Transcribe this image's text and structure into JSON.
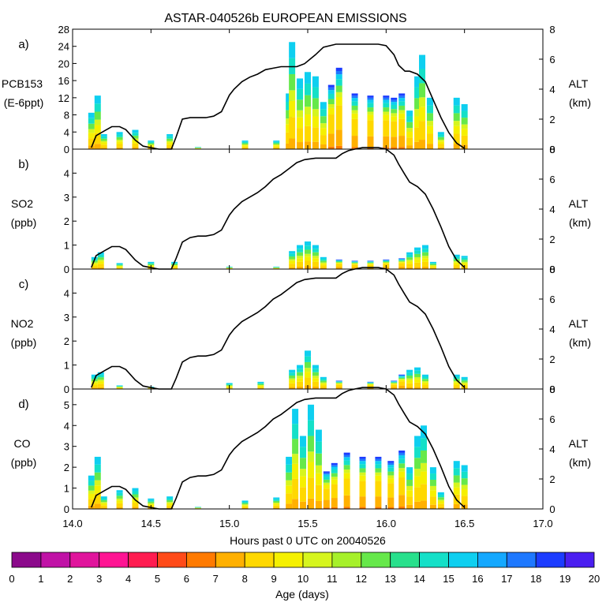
{
  "chart_data": {
    "type": "stacked-bar-with-line",
    "title": "ASTAR-040526b EUROPEAN EMISSIONS",
    "xlabel": "Hours past 0 UTC on 20040526",
    "xlim": [
      14.0,
      17.0
    ],
    "xticks": [
      "14.0",
      "14.5",
      "15.0",
      "15.5",
      "16.0",
      "16.5",
      "17.0"
    ],
    "altitude_axis": {
      "label": "ALT",
      "unit": "(km)",
      "ylim": [
        0,
        8
      ],
      "ticks": [
        "0",
        "2",
        "4",
        "6",
        "8"
      ]
    },
    "colorbar": {
      "label": "Age (days)",
      "ticks": [
        "0",
        "1",
        "2",
        "3",
        "4",
        "5",
        "6",
        "7",
        "8",
        "9",
        "10",
        "11",
        "12",
        "13",
        "14",
        "15",
        "16",
        "17",
        "18",
        "19",
        "20"
      ],
      "colors": [
        "#8b0a8b",
        "#c012a6",
        "#e0149c",
        "#ff1493",
        "#ff1c50",
        "#ff4a18",
        "#ff7a00",
        "#ffb000",
        "#ffd800",
        "#f5f000",
        "#d6f51e",
        "#a6f02a",
        "#66e84a",
        "#28e08c",
        "#14e0c8",
        "#0ecff0",
        "#14a8ff",
        "#1e78ff",
        "#1c3cff",
        "#4a1ef0"
      ]
    },
    "altitude_profile": {
      "x": [
        14.12,
        14.15,
        14.2,
        14.25,
        14.3,
        14.34,
        14.4,
        14.45,
        14.5,
        14.55,
        14.6,
        14.63,
        14.66,
        14.7,
        14.75,
        14.8,
        14.85,
        14.9,
        14.95,
        15.0,
        15.03,
        15.08,
        15.13,
        15.18,
        15.23,
        15.28,
        15.33,
        15.38,
        15.43,
        15.48,
        15.55,
        15.6,
        15.68,
        15.72,
        15.76,
        15.8,
        15.85,
        15.9,
        15.95,
        16.0,
        16.05,
        16.08,
        16.12,
        16.15,
        16.2,
        16.25,
        16.3,
        16.35,
        16.4,
        16.45,
        16.5
      ],
      "alt_km": [
        0.1,
        0.9,
        1.2,
        1.5,
        1.5,
        1.3,
        0.6,
        0.2,
        0.1,
        0.0,
        0.0,
        0.0,
        0.7,
        1.8,
        2.1,
        2.2,
        2.2,
        2.3,
        2.6,
        3.6,
        4.0,
        4.5,
        4.8,
        5.1,
        5.5,
        6.0,
        6.3,
        6.7,
        7.1,
        7.3,
        7.4,
        7.4,
        7.4,
        7.7,
        7.9,
        8.0,
        8.1,
        8.1,
        8.1,
        8.0,
        7.6,
        7.0,
        6.3,
        5.8,
        5.5,
        5.0,
        4.0,
        2.8,
        1.5,
        0.6,
        0.1
      ]
    },
    "panels": [
      {
        "tag": "a)",
        "species": "PCB153",
        "unit": "(E-6ppt)",
        "ylim": [
          0,
          28
        ],
        "yticks": [
          "0",
          "4",
          "8",
          "12",
          "16",
          "20",
          "24",
          "28"
        ],
        "alt_ylim": [
          0,
          8
        ],
        "alt_km_scaled": [
          0.1,
          0.9,
          1.2,
          1.5,
          1.5,
          1.3,
          0.6,
          0.2,
          0.1,
          0.0,
          0.0,
          0.0,
          0.8,
          2.0,
          2.1,
          2.1,
          2.1,
          2.2,
          2.5,
          3.6,
          4.0,
          4.5,
          4.8,
          5.0,
          5.3,
          5.4,
          5.5,
          5.5,
          5.5,
          5.7,
          6.3,
          6.8,
          7.0,
          7.0,
          7.0,
          7.0,
          7.0,
          7.0,
          7.0,
          6.9,
          6.3,
          5.6,
          5.2,
          5.2,
          5.0,
          4.5,
          3.3,
          2.1,
          1.1,
          0.4,
          0.05
        ],
        "bars": [
          {
            "x": 14.12,
            "value": 8.5
          },
          {
            "x": 14.16,
            "value": 12.5
          },
          {
            "x": 14.2,
            "value": 3.5
          },
          {
            "x": 14.3,
            "value": 4.0
          },
          {
            "x": 14.4,
            "value": 4.5
          },
          {
            "x": 14.5,
            "value": 2.0
          },
          {
            "x": 14.62,
            "value": 3.5
          },
          {
            "x": 14.8,
            "value": 0.5
          },
          {
            "x": 15.1,
            "value": 2.0
          },
          {
            "x": 15.3,
            "value": 2.0
          },
          {
            "x": 15.38,
            "value": 13.0
          },
          {
            "x": 15.4,
            "value": 25.0
          },
          {
            "x": 15.45,
            "value": 16.5
          },
          {
            "x": 15.5,
            "value": 18.0
          },
          {
            "x": 15.55,
            "value": 17.0
          },
          {
            "x": 15.6,
            "value": 11.0
          },
          {
            "x": 15.65,
            "value": 15.0
          },
          {
            "x": 15.7,
            "value": 19.0
          },
          {
            "x": 15.8,
            "value": 13.0
          },
          {
            "x": 15.9,
            "value": 12.5
          },
          {
            "x": 16.0,
            "value": 12.5
          },
          {
            "x": 16.05,
            "value": 12.0
          },
          {
            "x": 16.1,
            "value": 13.0
          },
          {
            "x": 16.15,
            "value": 9.0
          },
          {
            "x": 16.2,
            "value": 17.0
          },
          {
            "x": 16.23,
            "value": 22.0
          },
          {
            "x": 16.28,
            "value": 12.0
          },
          {
            "x": 16.35,
            "value": 4.0
          },
          {
            "x": 16.45,
            "value": 12.0
          },
          {
            "x": 16.5,
            "value": 10.5
          }
        ]
      },
      {
        "tag": "b)",
        "species": "SO2",
        "unit": "(ppb)",
        "ylim": [
          0,
          5
        ],
        "yticks": [
          "0",
          "1",
          "2",
          "3",
          "4"
        ],
        "alt_ylim": [
          0,
          8
        ],
        "bars": [
          {
            "x": 14.14,
            "value": 0.5
          },
          {
            "x": 14.18,
            "value": 0.7
          },
          {
            "x": 14.3,
            "value": 0.25
          },
          {
            "x": 14.5,
            "value": 0.3
          },
          {
            "x": 14.65,
            "value": 0.3
          },
          {
            "x": 15.0,
            "value": 0.1
          },
          {
            "x": 15.3,
            "value": 0.1
          },
          {
            "x": 15.4,
            "value": 0.75
          },
          {
            "x": 15.45,
            "value": 1.0
          },
          {
            "x": 15.5,
            "value": 1.15
          },
          {
            "x": 15.55,
            "value": 1.0
          },
          {
            "x": 15.6,
            "value": 0.5
          },
          {
            "x": 15.7,
            "value": 0.4
          },
          {
            "x": 15.8,
            "value": 0.35
          },
          {
            "x": 15.9,
            "value": 0.35
          },
          {
            "x": 16.0,
            "value": 0.4
          },
          {
            "x": 16.1,
            "value": 0.45
          },
          {
            "x": 16.15,
            "value": 0.7
          },
          {
            "x": 16.2,
            "value": 0.9
          },
          {
            "x": 16.25,
            "value": 1.0
          },
          {
            "x": 16.3,
            "value": 0.3
          },
          {
            "x": 16.45,
            "value": 0.6
          },
          {
            "x": 16.5,
            "value": 0.55
          }
        ]
      },
      {
        "tag": "c)",
        "species": "NO2",
        "unit": "(ppb)",
        "ylim": [
          0,
          5
        ],
        "yticks": [
          "0",
          "1",
          "2",
          "3",
          "4"
        ],
        "alt_ylim": [
          0,
          8
        ],
        "bars": [
          {
            "x": 14.14,
            "value": 0.6
          },
          {
            "x": 14.18,
            "value": 0.7
          },
          {
            "x": 14.3,
            "value": 0.15
          },
          {
            "x": 14.5,
            "value": 0.1
          },
          {
            "x": 15.0,
            "value": 0.25
          },
          {
            "x": 15.2,
            "value": 0.3
          },
          {
            "x": 15.4,
            "value": 0.8
          },
          {
            "x": 15.45,
            "value": 1.0
          },
          {
            "x": 15.5,
            "value": 1.6
          },
          {
            "x": 15.55,
            "value": 1.0
          },
          {
            "x": 15.6,
            "value": 0.5
          },
          {
            "x": 15.7,
            "value": 0.35
          },
          {
            "x": 15.9,
            "value": 0.3
          },
          {
            "x": 16.05,
            "value": 0.35
          },
          {
            "x": 16.1,
            "value": 0.6
          },
          {
            "x": 16.15,
            "value": 0.8
          },
          {
            "x": 16.2,
            "value": 0.9
          },
          {
            "x": 16.25,
            "value": 0.6
          },
          {
            "x": 16.45,
            "value": 0.6
          },
          {
            "x": 16.5,
            "value": 0.5
          }
        ]
      },
      {
        "tag": "d)",
        "species": "CO",
        "unit": "(ppb)",
        "ylim": [
          0,
          5.75
        ],
        "yticks": [
          "0",
          "1",
          "2",
          "3",
          "4",
          "5"
        ],
        "alt_ylim": [
          0,
          8
        ],
        "bars": [
          {
            "x": 14.12,
            "value": 1.6
          },
          {
            "x": 14.16,
            "value": 2.5
          },
          {
            "x": 14.2,
            "value": 0.6
          },
          {
            "x": 14.3,
            "value": 0.9
          },
          {
            "x": 14.4,
            "value": 1.0
          },
          {
            "x": 14.5,
            "value": 0.5
          },
          {
            "x": 14.62,
            "value": 0.6
          },
          {
            "x": 14.8,
            "value": 0.1
          },
          {
            "x": 15.1,
            "value": 0.4
          },
          {
            "x": 15.3,
            "value": 0.55
          },
          {
            "x": 15.38,
            "value": 2.5
          },
          {
            "x": 15.42,
            "value": 4.8
          },
          {
            "x": 15.47,
            "value": 3.5
          },
          {
            "x": 15.52,
            "value": 5.0
          },
          {
            "x": 15.57,
            "value": 3.8
          },
          {
            "x": 15.62,
            "value": 1.8
          },
          {
            "x": 15.67,
            "value": 2.2
          },
          {
            "x": 15.75,
            "value": 2.7
          },
          {
            "x": 15.85,
            "value": 2.5
          },
          {
            "x": 15.95,
            "value": 2.5
          },
          {
            "x": 16.03,
            "value": 2.3
          },
          {
            "x": 16.1,
            "value": 2.8
          },
          {
            "x": 16.15,
            "value": 2.0
          },
          {
            "x": 16.2,
            "value": 3.5
          },
          {
            "x": 16.24,
            "value": 4.0
          },
          {
            "x": 16.3,
            "value": 2.0
          },
          {
            "x": 16.35,
            "value": 0.8
          },
          {
            "x": 16.45,
            "value": 2.3
          },
          {
            "x": 16.5,
            "value": 2.1
          }
        ]
      }
    ]
  }
}
